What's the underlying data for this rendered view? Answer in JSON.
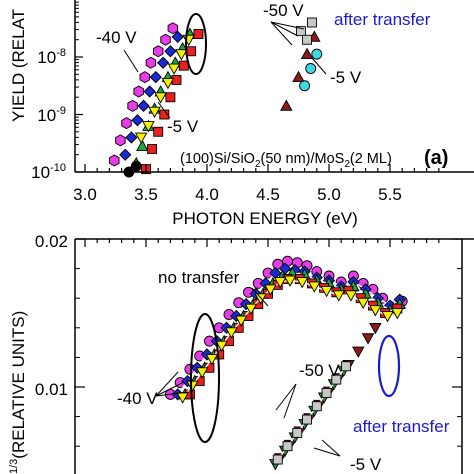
{
  "chart_data": [
    {
      "type": "scatter",
      "xlabel": "PHOTON ENERGY (eV)",
      "ylabel": "YIELD (RELAT",
      "xlim": [
        3.0,
        5.95
      ],
      "ylim_log10": [
        -10,
        -7.3
      ],
      "x_ticks": [
        "3.0",
        "3.5",
        "4.0",
        "4.5",
        "5.0",
        "5.5"
      ],
      "y_tick_labels": [
        {
          "base": "10",
          "exp": "-8",
          "log": -8
        },
        {
          "base": "10",
          "exp": "-9",
          "log": -9
        },
        {
          "base": "10",
          "exp": "-10",
          "log": -10
        }
      ],
      "sample_label": {
        "pre": "(100)Si/SiO",
        "sub1": "2",
        "mid": "(50 nm)/MoS",
        "sub2": "2",
        "post": "(2 ML)"
      },
      "panel_tag": "(a)",
      "annotations": [
        "-40 V",
        "-5 V",
        "-50 V",
        "-5 V",
        "after transfer"
      ],
      "series": [
        {
          "color": "#e83ce8",
          "marker": "hexagon",
          "points": [
            [
              3.24,
              -9.8
            ],
            [
              3.29,
              -9.45
            ],
            [
              3.34,
              -9.15
            ],
            [
              3.39,
              -8.85
            ],
            [
              3.44,
              -8.6
            ],
            [
              3.49,
              -8.35
            ],
            [
              3.54,
              -8.1
            ],
            [
              3.6,
              -7.9
            ],
            [
              3.66,
              -7.7
            ],
            [
              3.72,
              -7.5
            ]
          ]
        },
        {
          "color": "#1a2bd6",
          "marker": "diamond",
          "points": [
            [
              3.33,
              -9.7
            ],
            [
              3.38,
              -9.4
            ],
            [
              3.43,
              -9.1
            ],
            [
              3.48,
              -8.85
            ],
            [
              3.53,
              -8.6
            ],
            [
              3.58,
              -8.35
            ],
            [
              3.64,
              -8.1
            ],
            [
              3.7,
              -7.9
            ],
            [
              3.76,
              -7.65
            ]
          ]
        },
        {
          "color": "#1aa83a",
          "marker": "triangle-up",
          "points": [
            [
              3.42,
              -9.85
            ],
            [
              3.47,
              -9.55
            ],
            [
              3.52,
              -9.2
            ],
            [
              3.57,
              -8.9
            ],
            [
              3.62,
              -8.6
            ],
            [
              3.68,
              -8.35
            ],
            [
              3.74,
              -8.1
            ],
            [
              3.8,
              -7.85
            ],
            [
              3.86,
              -7.6
            ]
          ]
        },
        {
          "color": "#e82020",
          "marker": "square",
          "points": [
            [
              3.5,
              -9.95
            ],
            [
              3.55,
              -9.6
            ],
            [
              3.6,
              -9.3
            ],
            [
              3.65,
              -9.0
            ],
            [
              3.7,
              -8.7
            ],
            [
              3.75,
              -8.4
            ],
            [
              3.81,
              -8.15
            ],
            [
              3.87,
              -7.9
            ],
            [
              3.93,
              -7.6
            ]
          ]
        },
        {
          "color": "#f5f000",
          "marker": "triangle-down",
          "points": [
            [
              3.46,
              -9.4
            ],
            [
              3.52,
              -9.2
            ],
            [
              3.57,
              -8.95
            ],
            [
              3.62,
              -8.7
            ],
            [
              3.68,
              -8.45
            ],
            [
              3.73,
              -8.2
            ],
            [
              3.79,
              -7.95
            ],
            [
              3.85,
              -7.7
            ]
          ]
        },
        {
          "color": "#000000",
          "marker": "circle",
          "points": [
            [
              3.36,
              -10.0
            ],
            [
              3.42,
              -9.9
            ]
          ]
        },
        {
          "color": "#8b1a1a",
          "marker": "triangle-up",
          "points": [
            [
              4.65,
              -8.85
            ],
            [
              4.75,
              -8.35
            ],
            [
              4.82,
              -7.95
            ],
            [
              4.88,
              -7.65
            ]
          ]
        },
        {
          "color": "#c8c8c8",
          "marker": "square",
          "points": [
            [
              4.77,
              -7.55
            ],
            [
              4.82,
              -7.7
            ],
            [
              4.86,
              -7.4
            ]
          ]
        },
        {
          "color": "#40d8e0",
          "marker": "circle",
          "points": [
            [
              4.8,
              -8.5
            ],
            [
              4.85,
              -8.2
            ],
            [
              4.9,
              -7.95
            ]
          ]
        }
      ]
    },
    {
      "type": "scatter",
      "ylabel": "(RELATIVE UNITS)",
      "ylabel_fragment": "1/3",
      "xlim": [
        3.0,
        5.95
      ],
      "ylim": [
        0.005,
        0.02
      ],
      "y_ticks": [
        "0.02",
        "0.01"
      ],
      "annotations": [
        "no transfer",
        "-40 V",
        "-50 V",
        "after transfer",
        "-5 V"
      ],
      "series": [
        {
          "color": "#e83ce8",
          "marker": "circle",
          "points": [
            [
              3.7,
              0.0095
            ],
            [
              3.78,
              0.0103
            ],
            [
              3.86,
              0.0112
            ],
            [
              3.94,
              0.0121
            ],
            [
              4.02,
              0.0131
            ],
            [
              4.1,
              0.014
            ],
            [
              4.18,
              0.0149
            ],
            [
              4.26,
              0.0157
            ],
            [
              4.34,
              0.0164
            ],
            [
              4.42,
              0.017
            ],
            [
              4.5,
              0.0177
            ],
            [
              4.58,
              0.0183
            ],
            [
              4.66,
              0.0185
            ],
            [
              4.74,
              0.0184
            ],
            [
              4.82,
              0.0182
            ],
            [
              4.9,
              0.0178
            ],
            [
              5.0,
              0.0175
            ],
            [
              5.1,
              0.0171
            ],
            [
              5.2,
              0.0175
            ],
            [
              5.28,
              0.017
            ],
            [
              5.36,
              0.0166
            ],
            [
              5.44,
              0.016
            ],
            [
              5.52,
              0.0154
            ],
            [
              5.6,
              0.0158
            ]
          ]
        },
        {
          "color": "#1a2bd6",
          "marker": "diamond",
          "points": [
            [
              3.76,
              0.0095
            ],
            [
              3.84,
              0.0104
            ],
            [
              3.92,
              0.0113
            ],
            [
              4.0,
              0.0122
            ],
            [
              4.08,
              0.0131
            ],
            [
              4.16,
              0.014
            ],
            [
              4.24,
              0.0148
            ],
            [
              4.32,
              0.0156
            ],
            [
              4.4,
              0.0163
            ],
            [
              4.48,
              0.017
            ],
            [
              4.56,
              0.0177
            ],
            [
              4.64,
              0.018
            ],
            [
              4.72,
              0.0179
            ],
            [
              4.8,
              0.0178
            ],
            [
              4.9,
              0.0174
            ],
            [
              5.0,
              0.0172
            ],
            [
              5.1,
              0.0168
            ],
            [
              5.2,
              0.0171
            ],
            [
              5.3,
              0.0166
            ],
            [
              5.4,
              0.016
            ],
            [
              5.5,
              0.0155
            ],
            [
              5.58,
              0.0159
            ]
          ]
        },
        {
          "color": "#1aa83a",
          "marker": "triangle-up",
          "points": [
            [
              3.82,
              0.0095
            ],
            [
              3.9,
              0.0104
            ],
            [
              3.98,
              0.0113
            ],
            [
              4.06,
              0.0122
            ],
            [
              4.14,
              0.0131
            ],
            [
              4.22,
              0.014
            ],
            [
              4.3,
              0.0148
            ],
            [
              4.38,
              0.0156
            ],
            [
              4.46,
              0.0163
            ],
            [
              4.54,
              0.017
            ],
            [
              4.62,
              0.0175
            ],
            [
              4.7,
              0.0177
            ],
            [
              4.8,
              0.0176
            ],
            [
              4.9,
              0.0172
            ],
            [
              5.0,
              0.017
            ],
            [
              5.1,
              0.0166
            ],
            [
              5.2,
              0.0168
            ],
            [
              5.3,
              0.0163
            ],
            [
              5.4,
              0.0157
            ],
            [
              5.5,
              0.0152
            ],
            [
              5.58,
              0.0156
            ]
          ]
        },
        {
          "color": "#e82020",
          "marker": "square",
          "points": [
            [
              3.86,
              0.0095
            ],
            [
              3.94,
              0.0104
            ],
            [
              4.02,
              0.0113
            ],
            [
              4.1,
              0.0122
            ],
            [
              4.18,
              0.0131
            ],
            [
              4.26,
              0.014
            ],
            [
              4.34,
              0.0148
            ],
            [
              4.42,
              0.0156
            ],
            [
              4.5,
              0.0163
            ],
            [
              4.58,
              0.0169
            ],
            [
              4.66,
              0.0173
            ],
            [
              4.76,
              0.0173
            ],
            [
              4.86,
              0.017
            ],
            [
              4.96,
              0.0167
            ],
            [
              5.06,
              0.0164
            ],
            [
              5.16,
              0.0165
            ],
            [
              5.26,
              0.016
            ],
            [
              5.36,
              0.0155
            ],
            [
              5.46,
              0.015
            ],
            [
              5.56,
              0.0153
            ]
          ]
        },
        {
          "color": "#f5f000",
          "marker": "triangle-down",
          "points": [
            [
              3.8,
              0.0093
            ],
            [
              3.88,
              0.0101
            ],
            [
              3.96,
              0.011
            ],
            [
              4.04,
              0.0119
            ],
            [
              4.12,
              0.0128
            ],
            [
              4.2,
              0.0137
            ],
            [
              4.28,
              0.0145
            ],
            [
              4.36,
              0.0153
            ],
            [
              4.44,
              0.016
            ],
            [
              4.52,
              0.0166
            ],
            [
              4.6,
              0.0171
            ],
            [
              4.68,
              0.0172
            ],
            [
              4.78,
              0.0171
            ],
            [
              4.88,
              0.0168
            ],
            [
              4.98,
              0.0165
            ],
            [
              5.08,
              0.0162
            ],
            [
              5.18,
              0.0162
            ],
            [
              5.28,
              0.0157
            ],
            [
              5.38,
              0.0152
            ],
            [
              5.48,
              0.0148
            ],
            [
              5.56,
              0.015
            ]
          ]
        },
        {
          "color": "#8b1a1a",
          "marker": "triangle-down",
          "points": [
            [
              4.6,
              0.0052
            ],
            [
              4.68,
              0.0061
            ],
            [
              4.76,
              0.007
            ],
            [
              4.84,
              0.0079
            ],
            [
              4.92,
              0.0088
            ],
            [
              5.0,
              0.0097
            ],
            [
              5.08,
              0.0106
            ],
            [
              5.16,
              0.0115
            ],
            [
              5.24,
              0.0124
            ],
            [
              5.32,
              0.0133
            ],
            [
              5.38,
              0.014
            ]
          ]
        },
        {
          "color": "#2a8a3a",
          "marker": "triangle-down",
          "points": [
            [
              4.56,
              0.0048
            ],
            [
              4.64,
              0.0057
            ],
            [
              4.72,
              0.0066
            ],
            [
              4.8,
              0.0075
            ],
            [
              4.88,
              0.0084
            ],
            [
              4.96,
              0.0093
            ],
            [
              5.04,
              0.0102
            ],
            [
              5.12,
              0.0111
            ]
          ]
        },
        {
          "color": "#c8c8c8",
          "marker": "square",
          "points": [
            [
              4.58,
              0.0051
            ],
            [
              4.66,
              0.006
            ],
            [
              4.74,
              0.0069
            ],
            [
              4.82,
              0.0078
            ],
            [
              4.9,
              0.0087
            ],
            [
              4.98,
              0.0096
            ],
            [
              5.06,
              0.0105
            ],
            [
              5.14,
              0.0114
            ]
          ]
        }
      ]
    }
  ]
}
